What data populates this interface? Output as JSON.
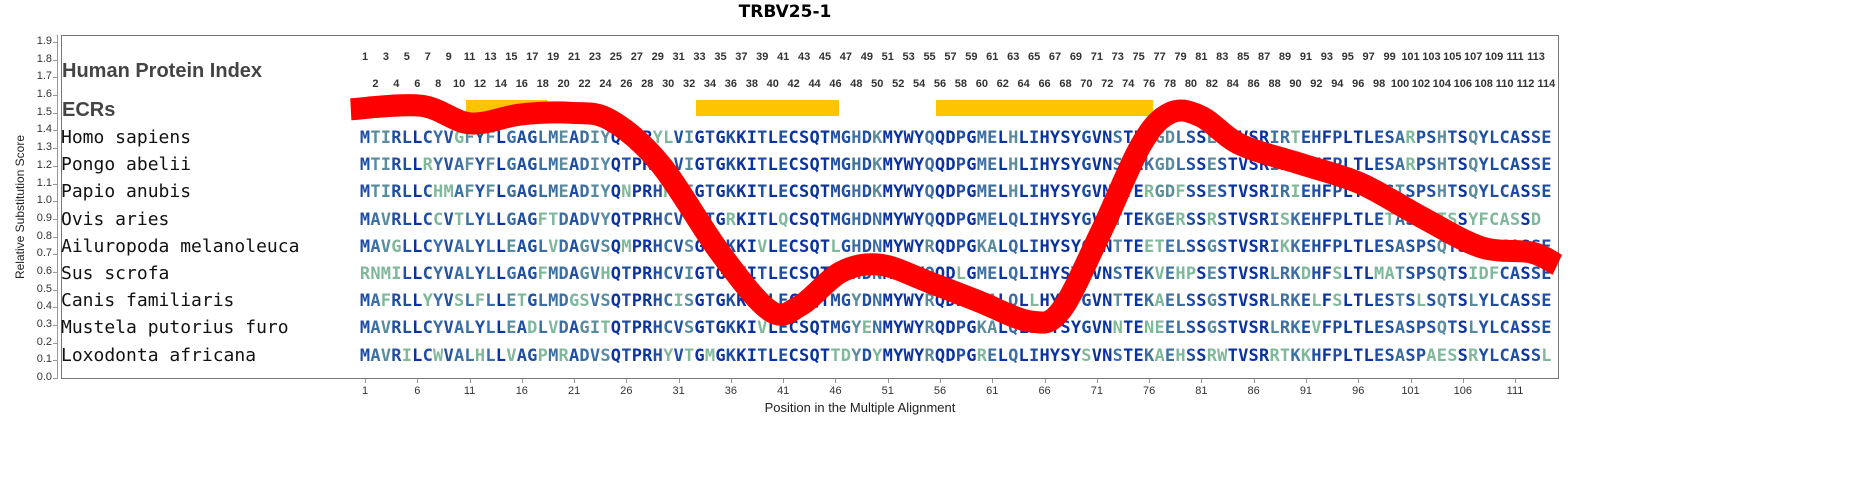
{
  "chart_data": {
    "type": "line",
    "title": "TRBV25-1",
    "xlabel": "Position in the Multiple Alignment",
    "ylabel": "Relative Substitution Score",
    "ylim": [
      0.0,
      1.9
    ],
    "xlim": [
      1,
      114
    ],
    "yticks": [
      "0.0",
      "0.1",
      "0.2",
      "0.3",
      "0.4",
      "0.5",
      "0.6",
      "0.7",
      "0.8",
      "0.9",
      "1.0",
      "1.1",
      "1.2",
      "1.3",
      "1.4",
      "1.5",
      "1.6",
      "1.7",
      "1.8",
      "1.9"
    ],
    "xticks": [
      1,
      6,
      11,
      16,
      21,
      26,
      31,
      36,
      41,
      46,
      51,
      56,
      61,
      66,
      71,
      76,
      81,
      86,
      91,
      96,
      101,
      106,
      111
    ],
    "row_labels": {
      "index": "Human Protein Index",
      "ecrs": "ECRs"
    },
    "ecrs": [
      [
        11,
        18
      ],
      [
        33,
        46
      ],
      [
        56,
        76
      ]
    ],
    "series": [
      {
        "name": "Relative Substitution Score",
        "color": "#ff0000",
        "x": [
          -0.4,
          6.3,
          11,
          15.8,
          20.6,
          24.4,
          29.2,
          34.9,
          39.7,
          42.6,
          46.5,
          50.3,
          55,
          59.8,
          64.6,
          67.5,
          71.3,
          75.2,
          78,
          80.9,
          84.7,
          90.5,
          96.2,
          102,
          107.7,
          112.5,
          115
        ],
        "y": [
          1.52,
          1.54,
          1.44,
          1.49,
          1.5,
          1.46,
          1.21,
          0.71,
          0.38,
          0.41,
          0.6,
          0.64,
          0.54,
          0.43,
          0.32,
          0.38,
          0.82,
          1.32,
          1.5,
          1.48,
          1.32,
          1.21,
          1.1,
          0.91,
          0.74,
          0.71,
          0.64
        ]
      }
    ],
    "alignment": [
      {
        "species": "Homo sapiens",
        "seq": "MTIRLLCYVGFYFLGAGLMEADIYQTPRYLVIGTGKKITLECSQTMGHDKMYWYQQDPGMELHLIHYSYGVNSTEKGDLSSESTVSRIRTEHFPLTLESARPSHTSQYLCASSE"
      },
      {
        "species": "Pongo abelii",
        "seq": "MTIRLLRYVAFYFLGAGLMEADIYQTPRHLVIGTGKKITLECSQTMGHDKMYWYQQDPGMELHLIHYSYGVNSTEKGDLSSESTVSRIRMEHFPLTLESARPSHTSQYLCASSE"
      },
      {
        "species": "Papio anubis",
        "seq": "MTIRLLCHMAFYFLGAGLMEADIYQNPRHRVIGTGKKITLECSQTMGHDKMYWYQQDPGMELHLIHYSYGVNSTERGDFSSESTVSRIRIEHFPLTLESTSPSHTSQYLCASSE"
      },
      {
        "species": "Ovis aries",
        "seq": "MAVRLLCCVTLYLLGAGFTDADVYQTPRHCVTGTGRKITLQCSQTMGHDNMYWYQQDPGMELQLIHYSYGVNTTEKGERSSRSTVSRISKEHFPLTLETASSQTSSYFCASSD"
      },
      {
        "species": "Ailuropoda melanoleuca",
        "seq": "MAVGLLCYVALYLLEAGLVDAGVSQMPRHCVSGTGKKIVLECSQTLGHDNMYWYRQDPGKALQLIHYSYGVNTTEETELSSGSTVSRIKKEHFPLTLESASPSQTSLYLCASSE"
      },
      {
        "species": "Sus scrofa",
        "seq": "RNMILLCYVALYLLGAGFMDAGVHQTPRHCVIGTGKKITLECSQTMGHDNMYWYQQDLGMELQLIHYSYGVNSTEKVEHPSESTVSRLRKDHFSLTLMATSPSQTSIDFCASSE"
      },
      {
        "species": "Canis familiaris",
        "seq": "MAFRLLYYVSLFLLETGLMDGSVSQTPRHCISGTGKKITLECSQTMGYDNMYWYRQDPGKALQLLHYSYGVNTTEKAELSSGSTVSRLRKELFSLTLESTSLSQTSLYLCASSE"
      },
      {
        "species": "Mustela putorius furo",
        "seq": "MAVRLLCYVALYLLEADLVDAGITQTPRHCVSGTGKKIVLECSQTMGYENMYWYRQDPGKALQLIHYSYGVNNTENEELSSGSTVSRLRKEVFPLTLESASPSQTSLYLCASSE"
      },
      {
        "species": "Loxodonta africana",
        "seq": "MAVRILCWVALHLLVAGPMRADVSQTPRHYVTGMGKKITLECSQTTDYDYMYWYRQDPGRELQLIHYSYSVNSTEKAEHSSRWTVSRRTKKHFPLTLESASPAESSRYLCASSL"
      }
    ],
    "conservation_colors": [
      "#80b89c",
      "#5a8c9e",
      "#3d6fa3",
      "#1f4ea3",
      "#0a32a0"
    ],
    "ecr_color": "#ffc400"
  }
}
